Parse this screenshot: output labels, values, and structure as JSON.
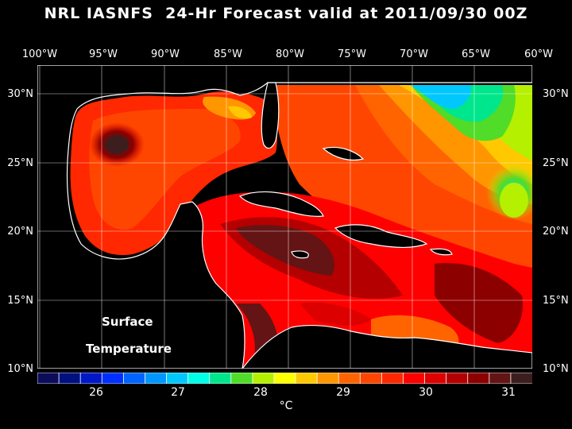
{
  "title": "NRL IASNFS  24-Hr Forecast valid at 2011/09/30 00Z",
  "lon_labels": [
    "100°W",
    "95°W",
    "90°W",
    "85°W",
    "80°W",
    "75°W",
    "70°W",
    "65°W",
    "60°W"
  ],
  "lat_labels": [
    "30°N",
    "25°N",
    "20°N",
    "15°N",
    "10°N"
  ],
  "caption": {
    "line1": "Surface",
    "line2": "Temperature"
  },
  "colorbar": {
    "ticks": [
      "26",
      "27",
      "28",
      "29",
      "30",
      "31"
    ],
    "unit": "°C",
    "colors": [
      "#0c0c5a",
      "#001080",
      "#0018c8",
      "#0030ff",
      "#0064ff",
      "#0096ff",
      "#00c8ff",
      "#00ffe6",
      "#00e68c",
      "#50dc28",
      "#b4f000",
      "#ffff00",
      "#ffc800",
      "#ff9600",
      "#ff6400",
      "#ff4600",
      "#ff2800",
      "#ff0000",
      "#dc0000",
      "#b40000",
      "#8c0000",
      "#641414",
      "#3c1e1e"
    ]
  },
  "colors": {
    "background": "#000000",
    "land": "#000000",
    "coast": "#ffffff",
    "grid": "#ffffff"
  }
}
